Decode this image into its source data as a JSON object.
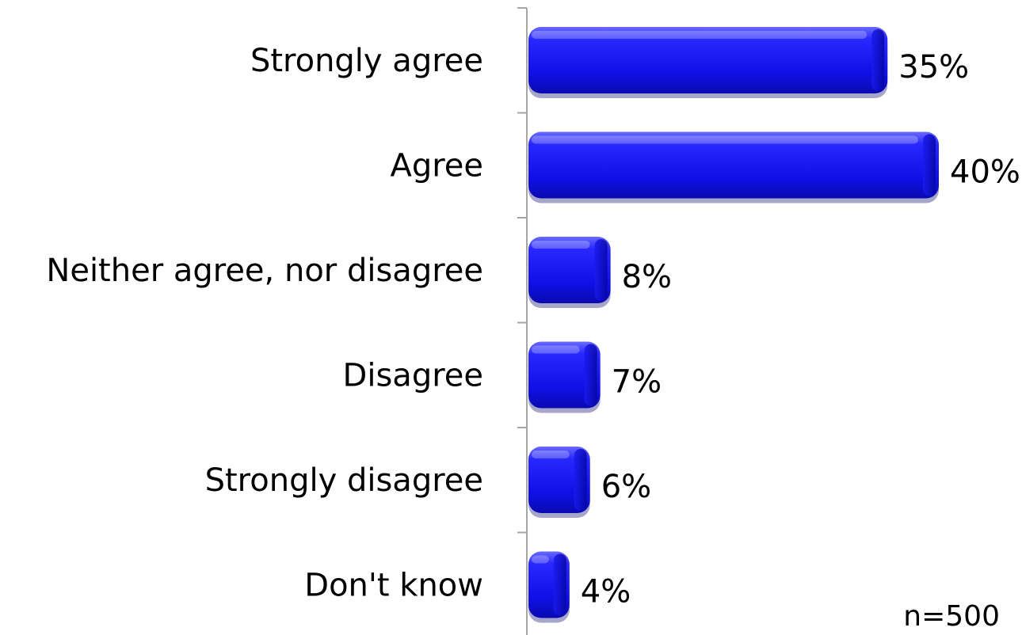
{
  "chart_data": {
    "type": "bar",
    "orientation": "horizontal",
    "categories": [
      "Strongly agree",
      "Agree",
      "Neither agree, nor disagree",
      "Disagree",
      "Strongly disagree",
      "Don't know"
    ],
    "series": [
      {
        "values": [
          35,
          40,
          8,
          7,
          6,
          4
        ]
      }
    ],
    "data_labels": [
      "35%",
      "40%",
      "8%",
      "7%",
      "6%",
      "4%"
    ],
    "value_unit": "%",
    "xlim": [
      0,
      45
    ],
    "bar_color": "#1010e6",
    "grid": false,
    "legend": "none",
    "annotation": "n=500"
  }
}
